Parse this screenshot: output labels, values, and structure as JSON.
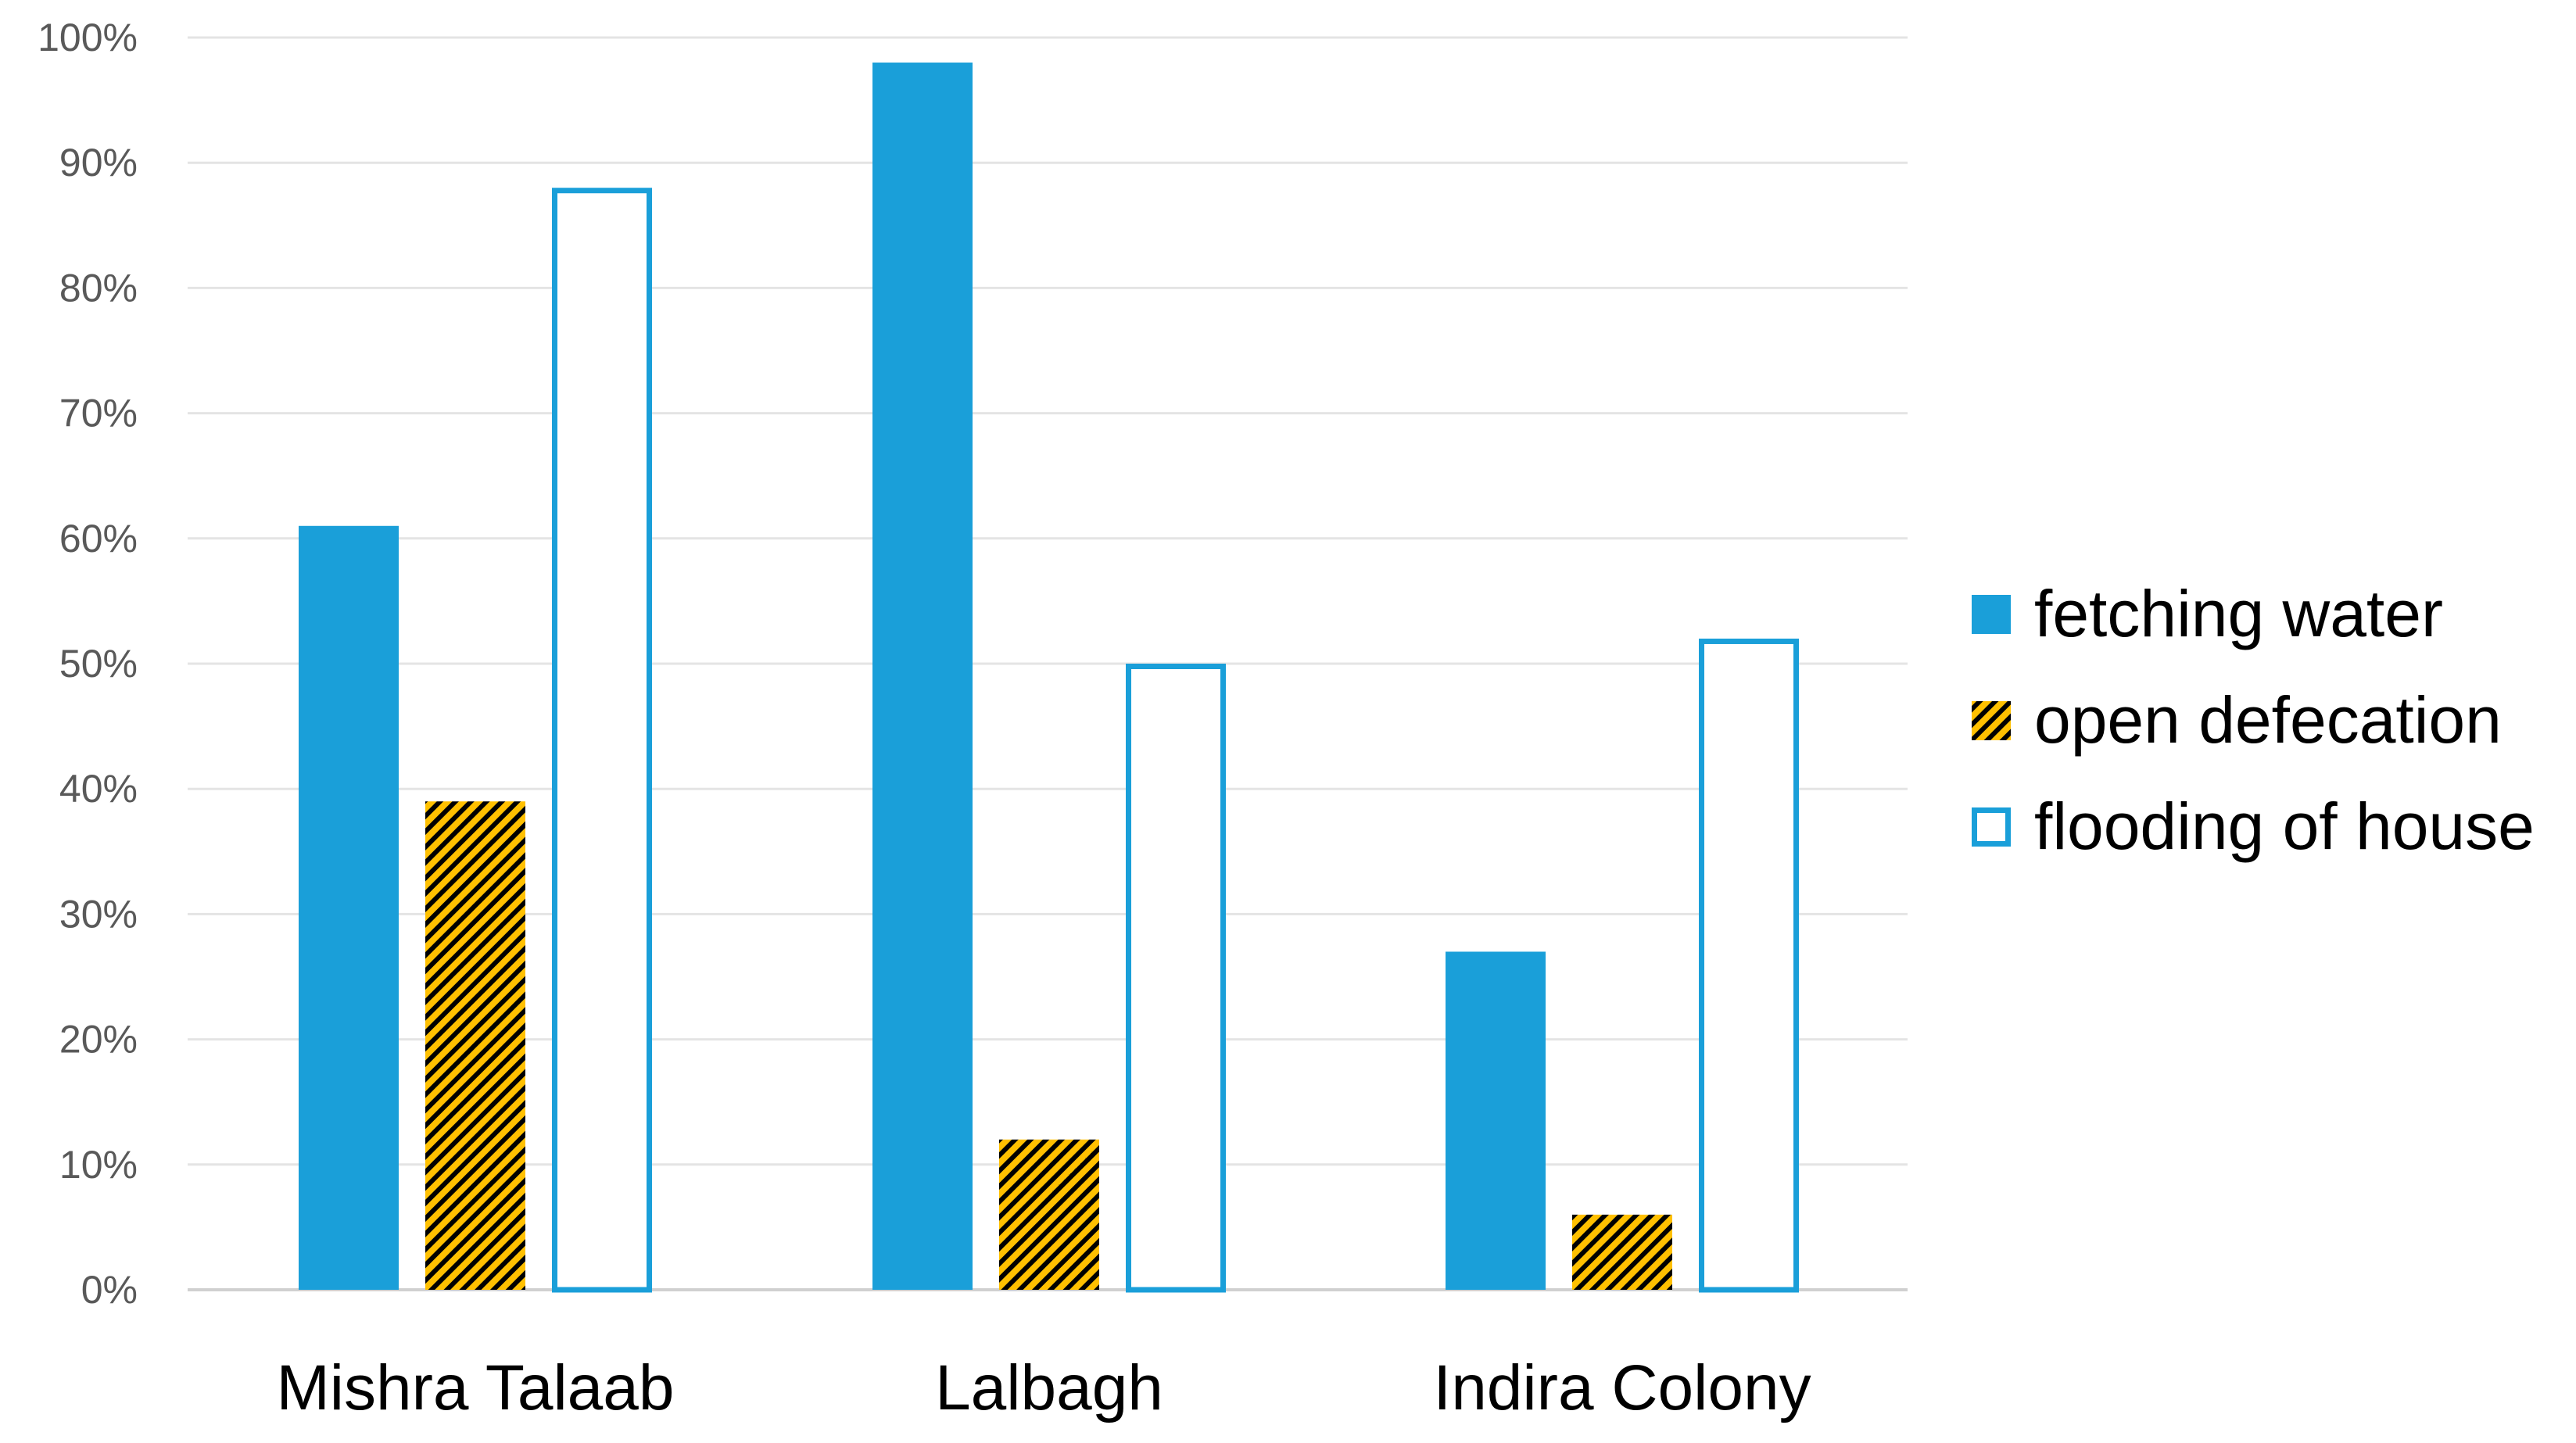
{
  "chart_data": {
    "type": "bar",
    "title": "",
    "xlabel": "",
    "ylabel": "",
    "ylim": [
      0,
      100
    ],
    "yticks": [
      0,
      10,
      20,
      30,
      40,
      50,
      60,
      70,
      80,
      90,
      100
    ],
    "ytick_labels": [
      "0%",
      "10%",
      "20%",
      "30%",
      "40%",
      "50%",
      "60%",
      "70%",
      "80%",
      "90%",
      "100%"
    ],
    "grid": true,
    "legend_position": "right",
    "categories": [
      "Mishra Talaab",
      "Lalbagh",
      "Indira Colony"
    ],
    "series": [
      {
        "name": "fetching water",
        "style": "solid",
        "color": "#1a9fd9",
        "values": [
          61,
          98,
          27
        ]
      },
      {
        "name": "open defecation",
        "style": "hatched",
        "color": "#ffc000",
        "hatch_color": "#000000",
        "values": [
          39,
          12,
          6
        ]
      },
      {
        "name": "flooding of house",
        "style": "outline",
        "color": "#1a9fd9",
        "values": [
          88,
          50,
          52
        ]
      }
    ]
  }
}
